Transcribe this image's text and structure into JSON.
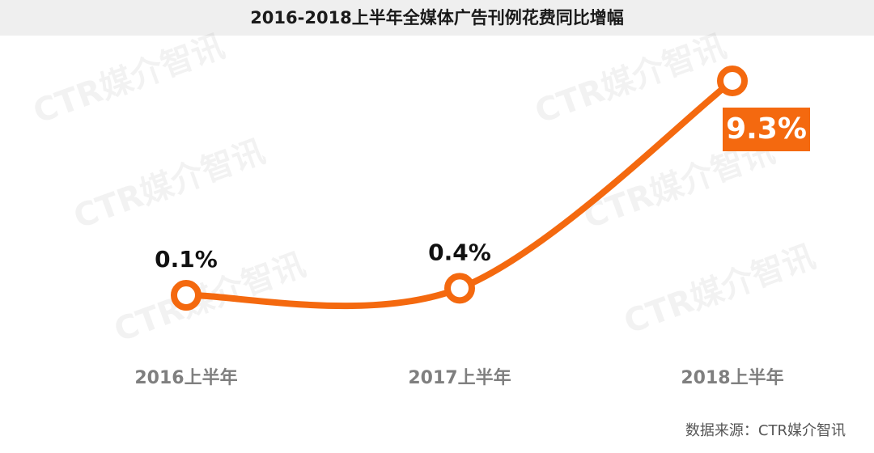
{
  "chart_data": {
    "type": "line",
    "title": "2016-2018上半年全媒体广告刊例花费同比增幅",
    "categories": [
      "2016上半年",
      "2017上半年",
      "2018上半年"
    ],
    "values": [
      0.1,
      0.4,
      9.3
    ],
    "value_labels": [
      "0.1%",
      "0.4%",
      "9.3%"
    ],
    "color": "#f4690f",
    "watermark": "CTR媒介智讯",
    "source": "数据来源：CTR媒介智讯"
  }
}
